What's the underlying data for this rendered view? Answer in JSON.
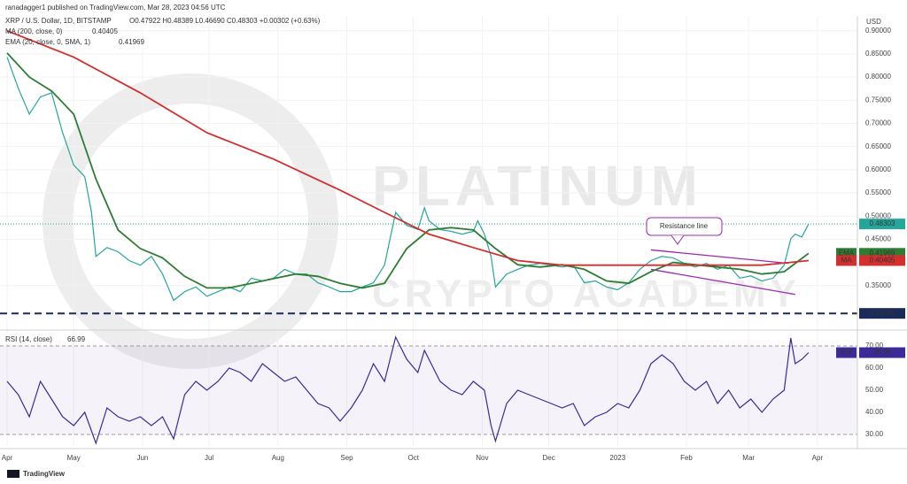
{
  "header": {
    "publisher": "ranadagger1 published on TradingView.com, Mar 28, 2023 04:56 UTC",
    "footer": "TradingView"
  },
  "watermark": [
    "PLATINUM",
    "CRYPTO ACADEMY"
  ],
  "chart_data": [
    {
      "type": "line",
      "title": "XRP / U.S. Dollar, 1D, BITSTAMP",
      "ohlc": "O0.47922 H0.48389 L0.46690 C0.48303 +0.00302 (+0.63%)",
      "axis_label": "USD",
      "xlim": [
        -3.2,
        383
      ],
      "xticks": [
        {
          "value": 0,
          "label": "Apr"
        },
        {
          "value": 30,
          "label": "May"
        },
        {
          "value": 61,
          "label": "Jun"
        },
        {
          "value": 91,
          "label": "Jul"
        },
        {
          "value": 122,
          "label": "Aug"
        },
        {
          "value": 153,
          "label": "Sep"
        },
        {
          "value": 183,
          "label": "Oct"
        },
        {
          "value": 214,
          "label": "Nov"
        },
        {
          "value": 244,
          "label": "Dec"
        },
        {
          "value": 275,
          "label": "2023"
        },
        {
          "value": 306,
          "label": "Feb"
        },
        {
          "value": 334,
          "label": "Mar"
        },
        {
          "value": 365,
          "label": "Apr"
        }
      ],
      "ylim": [
        0.256,
        0.932
      ],
      "yticks": [
        {
          "value": 0.35,
          "label": "0.35000"
        },
        {
          "value": 0.45,
          "label": "0.45000"
        },
        {
          "value": 0.5,
          "label": "0.50000"
        },
        {
          "value": 0.55,
          "label": "0.55000"
        },
        {
          "value": 0.6,
          "label": "0.60000"
        },
        {
          "value": 0.65,
          "label": "0.65000"
        },
        {
          "value": 0.7,
          "label": "0.70000"
        },
        {
          "value": 0.75,
          "label": "0.75000"
        },
        {
          "value": 0.8,
          "label": "0.80000"
        },
        {
          "value": 0.85,
          "label": "0.85000"
        },
        {
          "value": 0.9,
          "label": "0.90000"
        }
      ],
      "grid": true,
      "last_price": 0.48303,
      "support": {
        "value": 0.29,
        "label": "0.29000"
      },
      "annotation": "Resistance line",
      "channel": {
        "color": "#9c27b0",
        "upper": {
          "x": [
            290,
            352
          ],
          "values": [
            0.427,
            0.398
          ]
        },
        "lower": {
          "x": [
            290,
            355
          ],
          "values": [
            0.385,
            0.331
          ]
        }
      },
      "series": [
        {
          "color": "#26a69a",
          "x": [
            0,
            5,
            10,
            15,
            20,
            25,
            30,
            35,
            38,
            40,
            45,
            50,
            55,
            60,
            65,
            70,
            75,
            80,
            85,
            90,
            95,
            100,
            105,
            110,
            115,
            120,
            125,
            130,
            135,
            140,
            145,
            150,
            155,
            160,
            165,
            170,
            175,
            180,
            185,
            188,
            190,
            195,
            200,
            205,
            210,
            212,
            215,
            218,
            220,
            225,
            230,
            235,
            240,
            245,
            250,
            255,
            260,
            265,
            270,
            275,
            280,
            285,
            290,
            295,
            300,
            305,
            310,
            315,
            320,
            325,
            330,
            335,
            340,
            345,
            350,
            353,
            355,
            358,
            361
          ],
          "values": [
            0.843,
            0.776,
            0.72,
            0.757,
            0.766,
            0.68,
            0.61,
            0.585,
            0.508,
            0.413,
            0.432,
            0.423,
            0.404,
            0.394,
            0.413,
            0.375,
            0.318,
            0.337,
            0.347,
            0.327,
            0.337,
            0.347,
            0.337,
            0.366,
            0.36,
            0.366,
            0.385,
            0.375,
            0.375,
            0.356,
            0.347,
            0.337,
            0.337,
            0.347,
            0.356,
            0.394,
            0.508,
            0.48,
            0.471,
            0.518,
            0.49,
            0.471,
            0.467,
            0.461,
            0.467,
            0.49,
            0.461,
            0.413,
            0.347,
            0.375,
            0.385,
            0.394,
            0.398,
            0.394,
            0.39,
            0.394,
            0.356,
            0.36,
            0.347,
            0.341,
            0.356,
            0.385,
            0.404,
            0.413,
            0.41,
            0.398,
            0.39,
            0.398,
            0.385,
            0.394,
            0.366,
            0.371,
            0.36,
            0.366,
            0.394,
            0.451,
            0.461,
            0.455,
            0.48303
          ]
        },
        {
          "name": "EMA (20, close, 0, SMA, 1)",
          "tag": "EMA",
          "color": "#2e7d32",
          "last": 0.41969,
          "x": [
            0,
            10,
            20,
            30,
            40,
            50,
            60,
            70,
            80,
            90,
            100,
            110,
            120,
            130,
            140,
            150,
            160,
            170,
            180,
            190,
            200,
            210,
            220,
            230,
            240,
            250,
            260,
            270,
            280,
            290,
            300,
            310,
            320,
            330,
            340,
            350,
            361
          ],
          "values": [
            0.852,
            0.8,
            0.77,
            0.72,
            0.58,
            0.47,
            0.43,
            0.41,
            0.37,
            0.345,
            0.345,
            0.355,
            0.365,
            0.375,
            0.37,
            0.355,
            0.345,
            0.355,
            0.43,
            0.47,
            0.475,
            0.47,
            0.43,
            0.395,
            0.39,
            0.395,
            0.385,
            0.36,
            0.355,
            0.38,
            0.4,
            0.395,
            0.39,
            0.385,
            0.375,
            0.38,
            0.41969
          ]
        },
        {
          "name": "MA (200, close, 0)",
          "tag": "MA",
          "color": "#d32f2f",
          "last": 0.40405,
          "x": [
            0,
            30,
            60,
            90,
            120,
            150,
            170,
            190,
            210,
            230,
            250,
            300,
            340,
            361
          ],
          "values": [
            0.9,
            0.843,
            0.766,
            0.68,
            0.623,
            0.556,
            0.508,
            0.461,
            0.432,
            0.404,
            0.394,
            0.394,
            0.394,
            0.40405
          ]
        }
      ]
    },
    {
      "type": "line",
      "title": "RSI (14, close)",
      "tag": "RSI",
      "last": 66.99,
      "xlim": [
        -3.2,
        383
      ],
      "ylim": [
        24.4,
        76.4
      ],
      "yticks": [
        {
          "value": 30,
          "label": "30.00"
        },
        {
          "value": 40,
          "label": "40.00"
        },
        {
          "value": 50,
          "label": "50.00"
        },
        {
          "value": 60,
          "label": "60.00"
        },
        {
          "value": 70,
          "label": "70.00"
        }
      ],
      "band": [
        30,
        70
      ],
      "series": [
        {
          "color": "#3d2a99",
          "x": [
            0,
            5,
            10,
            15,
            20,
            25,
            30,
            35,
            40,
            45,
            50,
            55,
            60,
            65,
            70,
            75,
            80,
            85,
            90,
            95,
            100,
            105,
            110,
            115,
            120,
            125,
            130,
            135,
            140,
            145,
            150,
            155,
            160,
            165,
            170,
            175,
            180,
            185,
            188,
            195,
            200,
            205,
            210,
            215,
            218,
            220,
            225,
            230,
            235,
            240,
            245,
            250,
            255,
            260,
            265,
            270,
            275,
            280,
            285,
            290,
            295,
            300,
            305,
            310,
            315,
            320,
            325,
            330,
            335,
            340,
            345,
            350,
            353,
            355,
            358,
            361
          ],
          "values": [
            54,
            48,
            38,
            54,
            46,
            38,
            34,
            40,
            26,
            42,
            38,
            36,
            38,
            34,
            38,
            28,
            48,
            54,
            50,
            54,
            60,
            58,
            54,
            62,
            58,
            54,
            56,
            50,
            44,
            42,
            36,
            42,
            50,
            62,
            54,
            74,
            64,
            58,
            68,
            54,
            50,
            48,
            54,
            50,
            34,
            27,
            44,
            50,
            48,
            46,
            44,
            42,
            44,
            34,
            38,
            40,
            44,
            42,
            50,
            62,
            66,
            62,
            54,
            50,
            54,
            44,
            50,
            42,
            46,
            40,
            46,
            50,
            73.6,
            62,
            64,
            66.99
          ]
        }
      ]
    }
  ]
}
